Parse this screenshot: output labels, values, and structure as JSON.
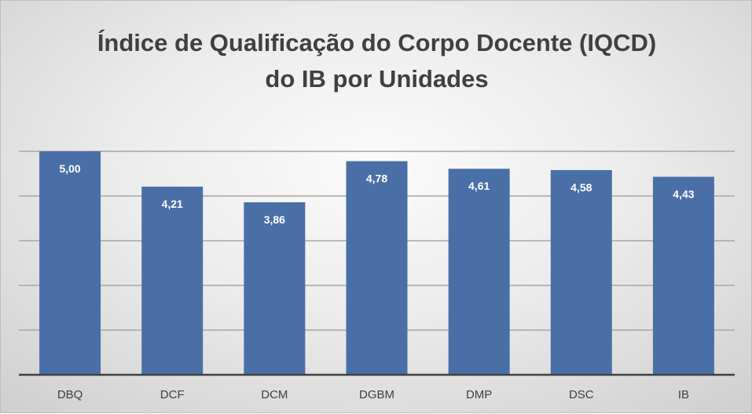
{
  "chart_data": {
    "type": "bar",
    "title": [
      "Índice de Qualificação do Corpo Docente (IQCD)",
      "do IB por Unidades"
    ],
    "categories": [
      "DBQ",
      "DCF",
      "DCM",
      "DGBM",
      "DMP",
      "DSC",
      "IB"
    ],
    "values": [
      5.0,
      4.21,
      3.86,
      4.78,
      4.61,
      4.58,
      4.43
    ],
    "data_labels": [
      "5,00",
      "4,21",
      "3,86",
      "4,78",
      "4,61",
      "4,58",
      "4,43"
    ],
    "xlabel": "",
    "ylabel": "",
    "ylim": [
      0,
      5
    ],
    "y_gridlines": [
      1,
      2,
      3,
      4,
      5
    ],
    "y_tick_labels_visible": false,
    "grid": true,
    "legend": "none",
    "colors": {
      "bar": "#4a6fa6",
      "gridline": "#a6a6a6",
      "axis": "#404040",
      "title": "#404040",
      "label": "#ffffff",
      "category": "#404040"
    }
  }
}
